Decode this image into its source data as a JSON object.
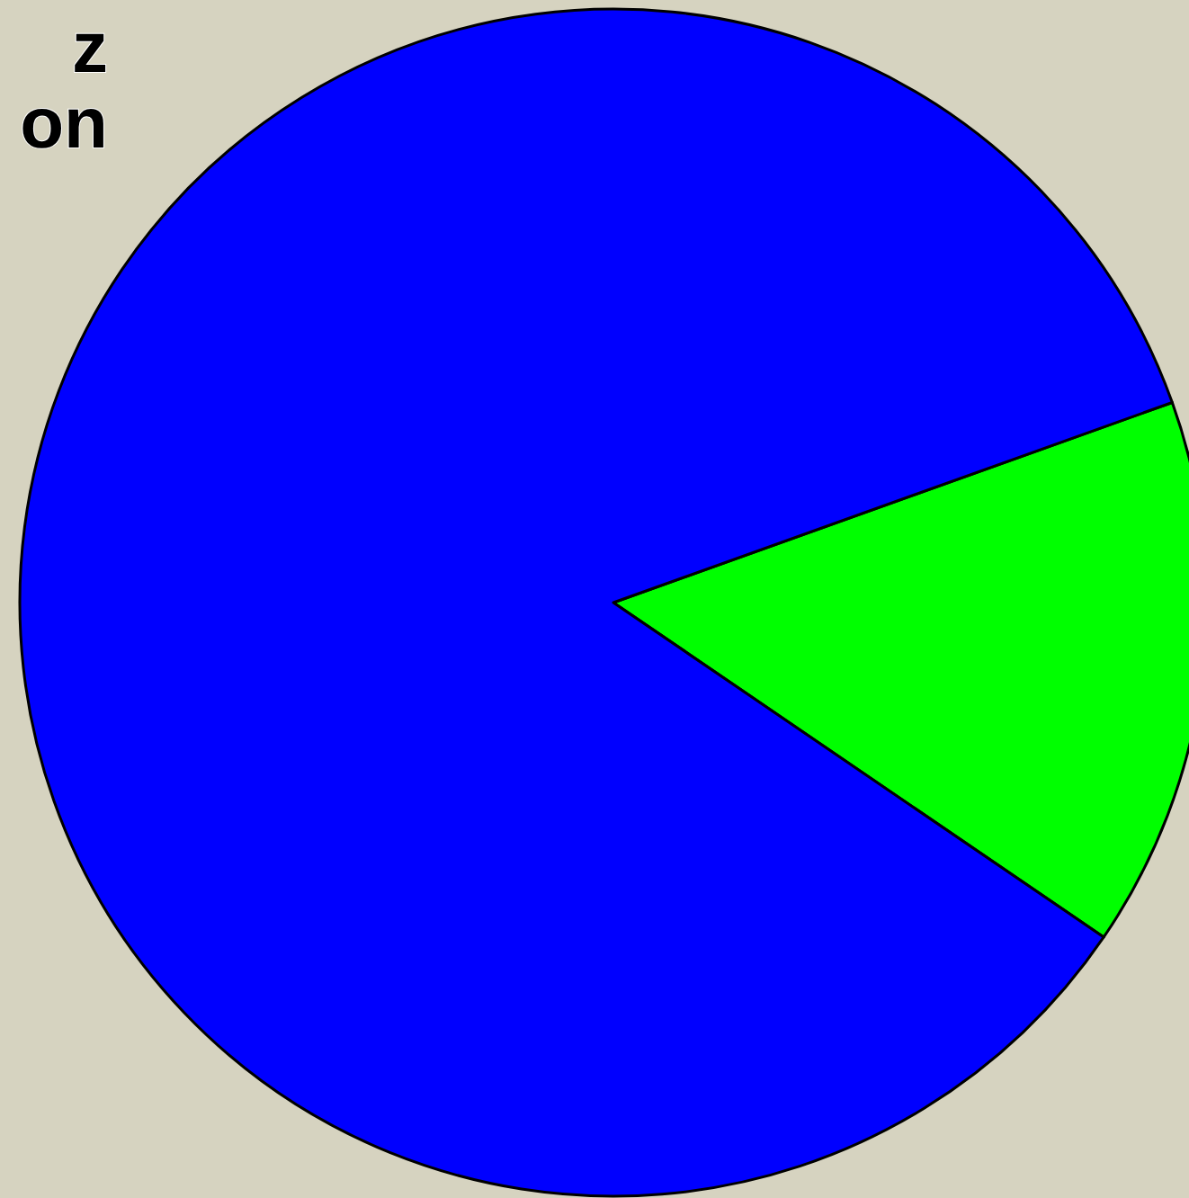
{
  "chart_data": {
    "type": "pie",
    "title": "z\non",
    "categories": [
      null,
      null
    ],
    "values": [
      15,
      85
    ],
    "colors": [
      "#00ff00",
      "#0000ff"
    ],
    "legend": false
  }
}
